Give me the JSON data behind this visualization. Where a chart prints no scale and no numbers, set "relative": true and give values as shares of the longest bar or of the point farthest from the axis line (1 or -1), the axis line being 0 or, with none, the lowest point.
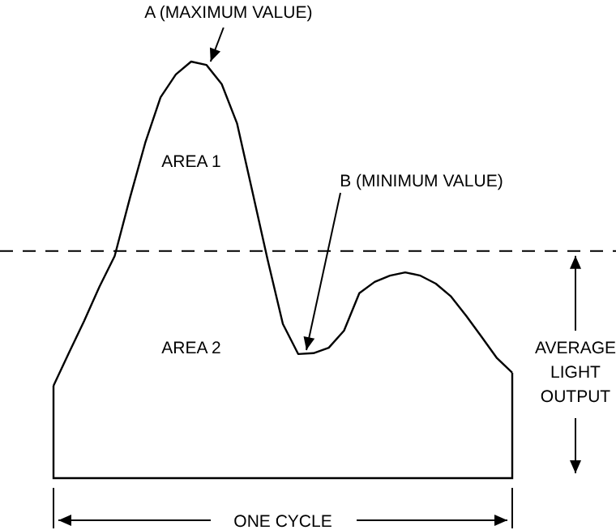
{
  "chart_data": {
    "type": "line",
    "relative": true,
    "xlabel": "ONE CYCLE",
    "categories": [
      null,
      null,
      null,
      null,
      null,
      null,
      null,
      null,
      null,
      null,
      null,
      null,
      null,
      null,
      null,
      null,
      null,
      null,
      null,
      null,
      null,
      null,
      null,
      null,
      null,
      null,
      null,
      null,
      null,
      null,
      null
    ],
    "series": [
      {
        "color": "#000000",
        "values": [
          0.222,
          0.3,
          0.377,
          0.459,
          0.533,
          0.673,
          0.805,
          0.914,
          0.969,
          1,
          0.992,
          0.946,
          0.852,
          0.689,
          0.525,
          0.37,
          0.298,
          0.3,
          0.313,
          0.354,
          0.444,
          0.471,
          0.486,
          0.494,
          0.486,
          0.467,
          0.436,
          0.389,
          0.339,
          0.288,
          0.253
        ]
      }
    ],
    "ref_lines": [
      {
        "axis": "y",
        "value": 0.545,
        "label": "AVERAGE LIGHT OUTPUT",
        "line_style": "dashed"
      }
    ],
    "annotations": [
      "A (MAXIMUM VALUE)",
      "B (MINIMUM VALUE)",
      "AREA 1",
      "AREA 2"
    ]
  }
}
